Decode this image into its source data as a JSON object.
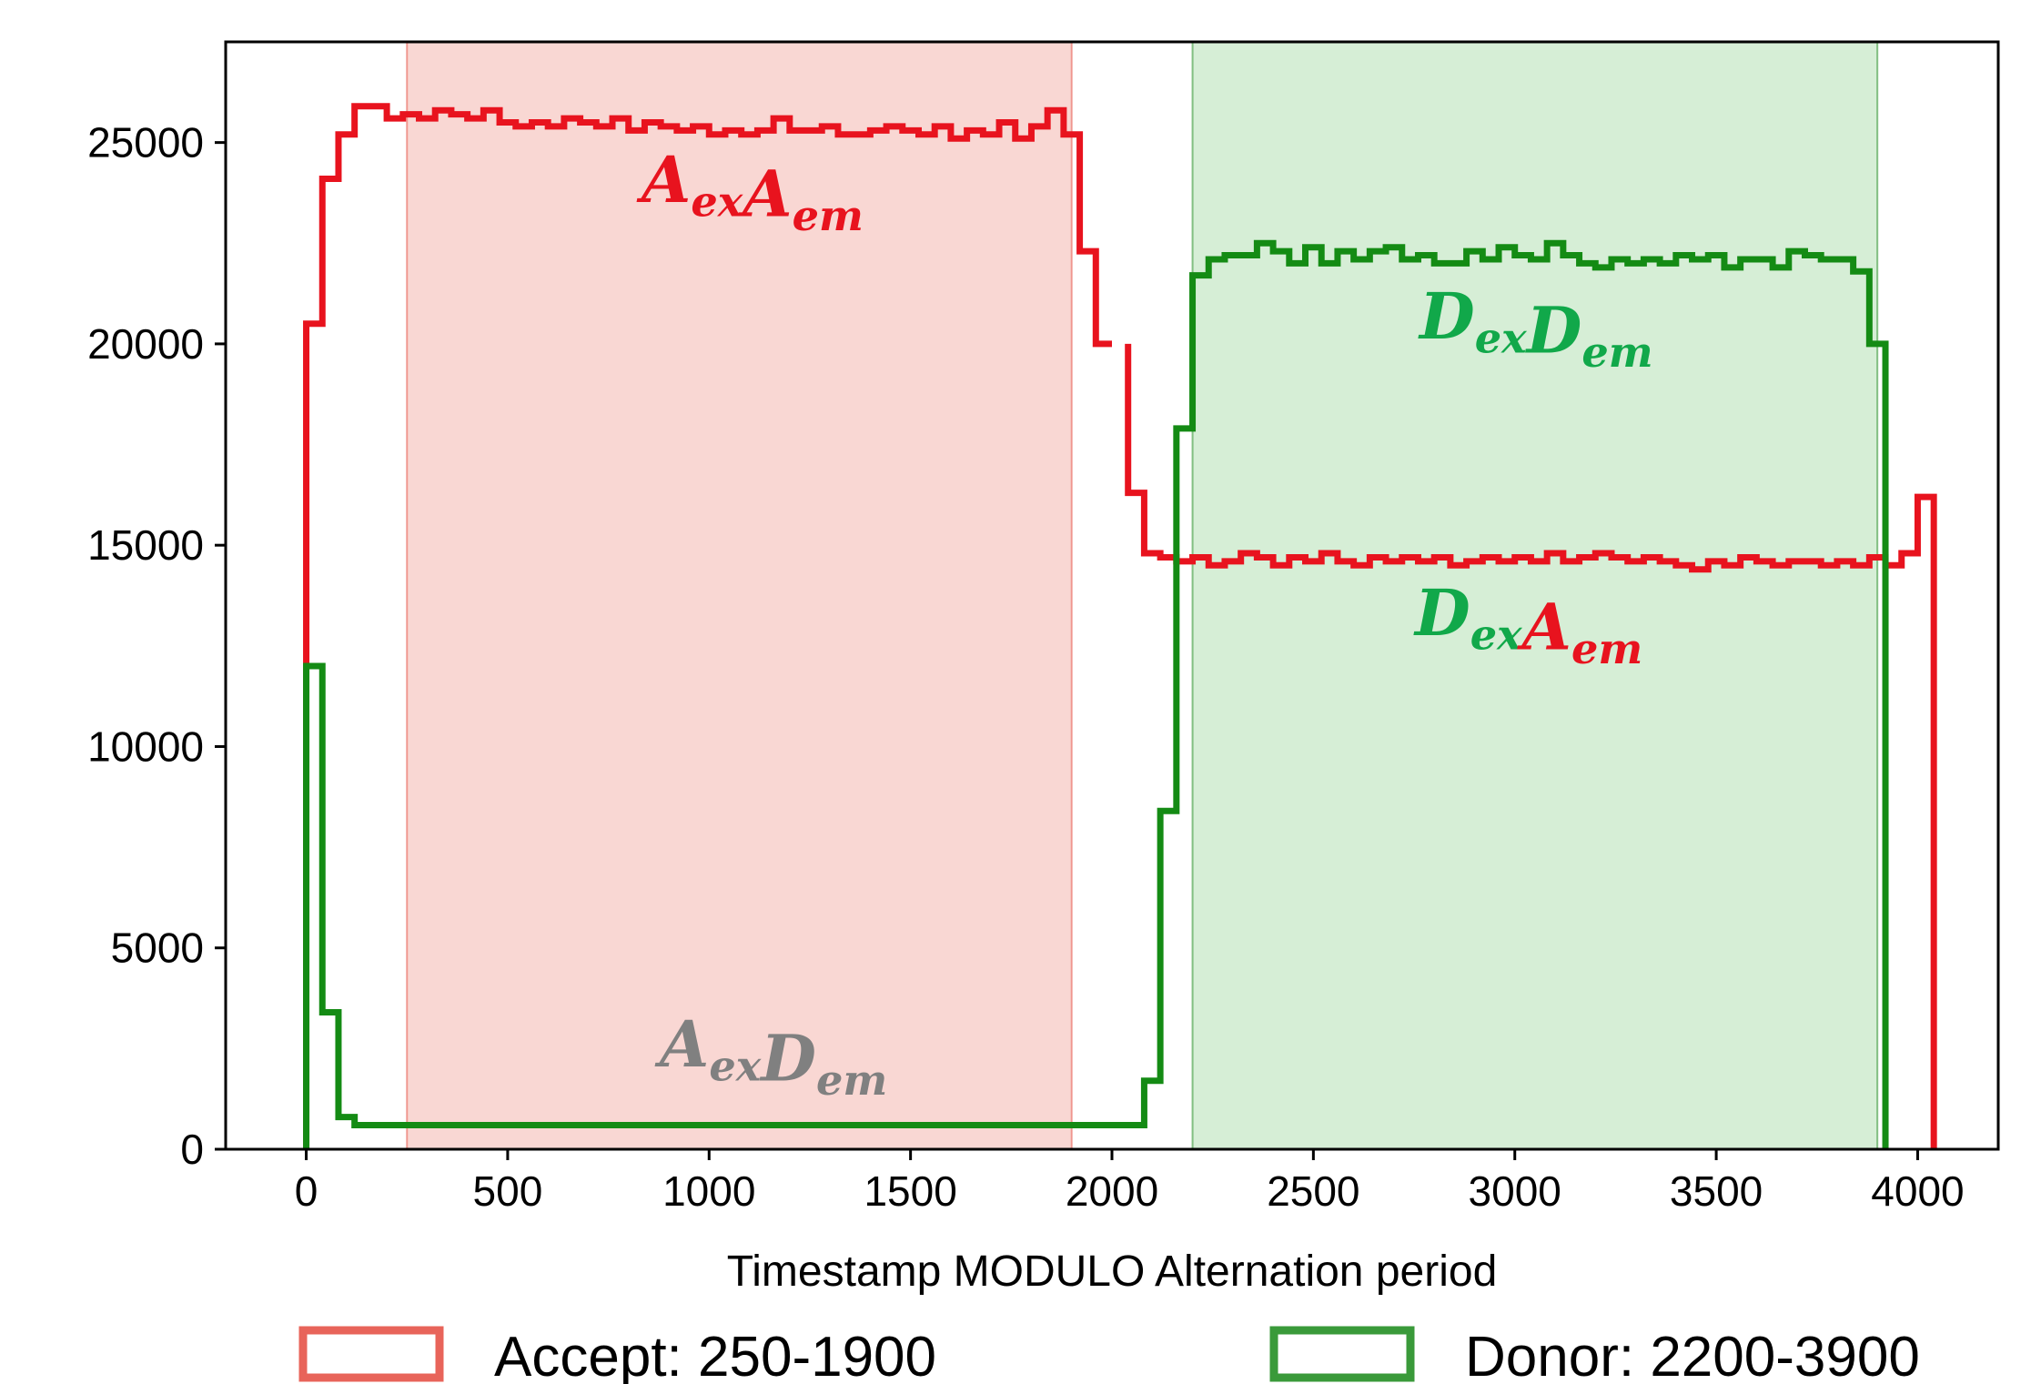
{
  "chart_data": {
    "type": "histogram",
    "xlabel": "Timestamp MODULO Alternation period",
    "ylabel": "",
    "xlim": [
      -200,
      4200
    ],
    "ylim": [
      0,
      27500
    ],
    "x_ticks": [
      0,
      500,
      1000,
      1500,
      2000,
      2500,
      3000,
      3500,
      4000
    ],
    "y_ticks": [
      0,
      5000,
      10000,
      15000,
      20000,
      25000
    ],
    "bin_width": 40,
    "grid": false,
    "legend_position": "bottom",
    "shaded_regions": [
      {
        "name": "Accept: 250-1900",
        "start": 250,
        "end": 1900,
        "fill": "#f9d7d3",
        "edge": "#e8645a"
      },
      {
        "name": "Donor: 2200-3900",
        "start": 2200,
        "end": 3900,
        "fill": "#d6eed6",
        "edge": "#3a9a3a"
      }
    ],
    "series": [
      {
        "name": "AexAem",
        "color": "#e8131e",
        "values": [
          20500,
          24100,
          25200,
          25900,
          25900,
          25600,
          25700,
          25600,
          25800,
          25700,
          25600,
          25800,
          25500,
          25400,
          25500,
          25400,
          25600,
          25500,
          25400,
          25600,
          25300,
          25500,
          25400,
          25300,
          25400,
          25200,
          25300,
          25200,
          25300,
          25600,
          25300,
          25300,
          25400,
          25200,
          25200,
          25300,
          25400,
          25300,
          25200,
          25400,
          25100,
          25300,
          25200,
          25500,
          25100,
          25400,
          25800,
          25200,
          22300,
          20000
        ]
      },
      {
        "name": "DexAem",
        "color": "#e8131e",
        "values": [
          16300,
          14800,
          14700,
          14600,
          14700,
          14500,
          14600,
          14800,
          14700,
          14500,
          14700,
          14600,
          14800,
          14600,
          14500,
          14700,
          14600,
          14700,
          14600,
          14700,
          14500,
          14600,
          14700,
          14600,
          14700,
          14600,
          14800,
          14600,
          14700,
          14800,
          14700,
          14600,
          14700,
          14600,
          14500,
          14400,
          14600,
          14500,
          14700,
          14600,
          14500,
          14600,
          14600,
          14500,
          14600,
          14500,
          14700,
          14500,
          14800,
          16200
        ]
      },
      {
        "name": "DexDem",
        "color": "#148b14",
        "values": [
          12000,
          3400,
          800,
          600,
          600,
          600,
          600,
          600,
          600,
          600,
          600,
          600,
          600,
          600,
          600,
          600,
          600,
          600,
          600,
          600,
          600,
          600,
          600,
          600,
          600,
          600,
          600,
          600,
          600,
          600,
          600,
          600,
          600,
          600,
          600,
          600,
          600,
          600,
          600,
          600,
          600,
          600,
          600,
          600,
          600,
          600,
          600,
          600,
          600,
          600,
          600,
          600,
          1700,
          8400,
          17900,
          21700,
          22100,
          22200,
          22200,
          22500,
          22300,
          22000,
          22400,
          22000,
          22300,
          22100,
          22300,
          22400,
          22100,
          22200,
          22000,
          22000,
          22300,
          22100,
          22400,
          22200,
          22100,
          22500,
          22200,
          22000,
          21900,
          22100,
          22000,
          22100,
          22000,
          22200,
          22100,
          22200,
          21900,
          22100,
          22100,
          21900,
          22300,
          22200,
          22100,
          22100,
          21800,
          20000
        ]
      }
    ],
    "annotations": [
      {
        "label": "AexAem",
        "parts": [
          {
            "text": "A",
            "sub": "ex",
            "color": "#e8131e"
          },
          {
            "text": "A",
            "sub": "em",
            "color": "#e8131e"
          }
        ]
      },
      {
        "label": "DexDem",
        "parts": [
          {
            "text": "D",
            "sub": "ex",
            "color": "#11a84a"
          },
          {
            "text": "D",
            "sub": "em",
            "color": "#11a84a"
          }
        ]
      },
      {
        "label": "DexAem",
        "parts": [
          {
            "text": "D",
            "sub": "ex",
            "color": "#11a84a"
          },
          {
            "text": "A",
            "sub": "em",
            "color": "#e8131e"
          }
        ]
      },
      {
        "label": "AexDem",
        "parts": [
          {
            "text": "A",
            "sub": "ex",
            "color": "#808080"
          },
          {
            "text": "D",
            "sub": "em",
            "color": "#808080"
          }
        ]
      }
    ],
    "legend": [
      {
        "label": "Accept: 250-1900",
        "edge": "#e8645a",
        "fill": "#ffffff"
      },
      {
        "label": "Donor: 2200-3900",
        "edge": "#3a9a3a",
        "fill": "#ffffff"
      }
    ]
  }
}
